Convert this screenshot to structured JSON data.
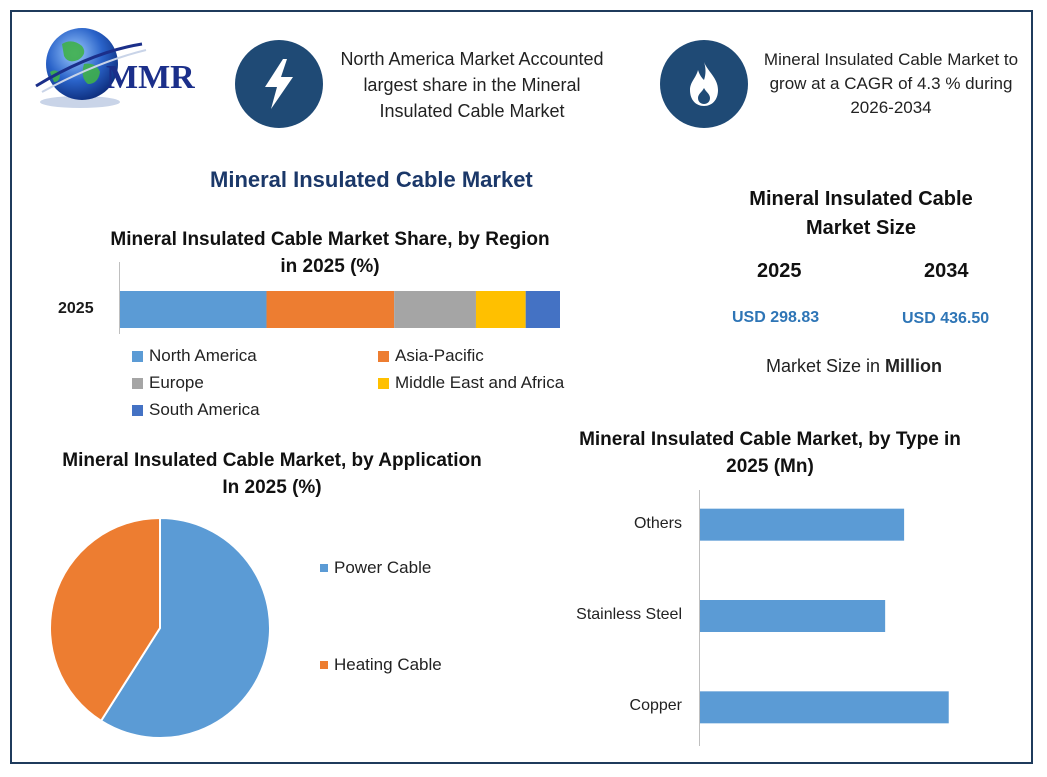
{
  "brand": {
    "logo_text": "MMR"
  },
  "highlights": [
    {
      "icon": "lightning-bolt-icon",
      "text": "North America Market Accounted largest share in the Mineral Insulated Cable Market"
    },
    {
      "icon": "flame-icon",
      "text": "Mineral Insulated Cable Market to grow at a CAGR of 4.3 % during 2026-2034"
    }
  ],
  "main_title": "Mineral Insulated Cable Market",
  "market_size": {
    "title": "Mineral Insulated Cable Market Size",
    "year1": "2025",
    "value1": "USD 298.83",
    "year2": "2034",
    "value2": "USD 436.50",
    "unit_prefix": "Market Size in ",
    "unit_bold": "Million"
  },
  "colors": {
    "frame": "#1f3b5c",
    "icon_bg": "#1f4a75",
    "title": "#1b3869",
    "value": "#2e75b6"
  },
  "chart_data": [
    {
      "type": "bar",
      "orientation": "horizontal-stacked",
      "title": "Mineral Insulated Cable Market Share, by Region in 2025 (%)",
      "categories": [
        "2025"
      ],
      "series": [
        {
          "name": "North America",
          "values": [
            33.3
          ],
          "color": "#5b9bd5"
        },
        {
          "name": "Asia-Pacific",
          "values": [
            29.0
          ],
          "color": "#ed7d31"
        },
        {
          "name": "Europe",
          "values": [
            18.6
          ],
          "color": "#a5a5a5"
        },
        {
          "name": "Middle East and Africa",
          "values": [
            11.3
          ],
          "color": "#ffc000"
        },
        {
          "name": "South America",
          "values": [
            7.8
          ],
          "color": "#4472c4"
        }
      ],
      "xlim": [
        0,
        100
      ],
      "legend": "bottom"
    },
    {
      "type": "pie",
      "title": "Mineral Insulated Cable Market, by Application In 2025 (%)",
      "slices": [
        {
          "name": "Power Cable",
          "value": 59,
          "color": "#5b9bd5"
        },
        {
          "name": "Heating Cable",
          "value": 41,
          "color": "#ed7d31"
        }
      ],
      "legend": "right"
    },
    {
      "type": "bar",
      "orientation": "horizontal",
      "title": "Mineral Insulated Cable Market, by Type in 2025 (Mn)",
      "categories": [
        "Others",
        "Stainless Steel",
        "Copper"
      ],
      "values": [
        91.5,
        83.0,
        111.5
      ],
      "xlim": [
        0,
        130
      ],
      "color": "#5b9bd5"
    }
  ]
}
